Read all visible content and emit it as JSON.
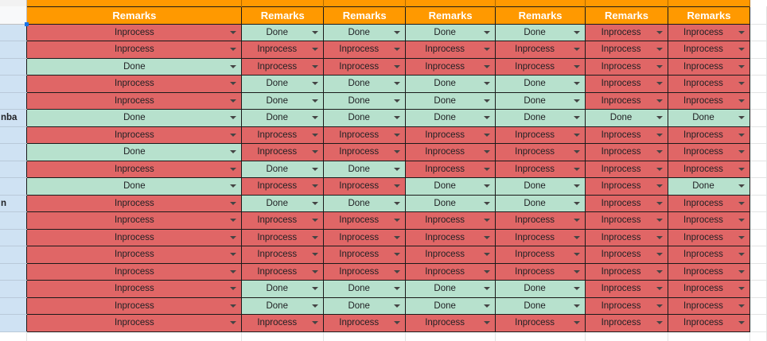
{
  "sheet": {
    "headers": [
      "Remarks",
      "Remarks",
      "Remarks",
      "Remarks",
      "Remarks",
      "Remarks",
      "Remarks"
    ],
    "rows": [
      {
        "name": "",
        "statuses": [
          "Inprocess",
          "Done",
          "Done",
          "Done",
          "Done",
          "Inprocess",
          "Inprocess"
        ]
      },
      {
        "name": "",
        "statuses": [
          "Inprocess",
          "Inprocess",
          "Inprocess",
          "Inprocess",
          "Inprocess",
          "Inprocess",
          "Inprocess"
        ]
      },
      {
        "name": "",
        "statuses": [
          "Done",
          "Inprocess",
          "Inprocess",
          "Inprocess",
          "Inprocess",
          "Inprocess",
          "Inprocess"
        ]
      },
      {
        "name": "",
        "statuses": [
          "Inprocess",
          "Done",
          "Done",
          "Done",
          "Done",
          "Inprocess",
          "Inprocess"
        ]
      },
      {
        "name": "",
        "statuses": [
          "Inprocess",
          "Done",
          "Done",
          "Done",
          "Done",
          "Inprocess",
          "Inprocess"
        ]
      },
      {
        "name": "nba",
        "statuses": [
          "Done",
          "Done",
          "Done",
          "Done",
          "Done",
          "Done",
          "Done"
        ]
      },
      {
        "name": "",
        "statuses": [
          "Inprocess",
          "Inprocess",
          "Inprocess",
          "Inprocess",
          "Inprocess",
          "Inprocess",
          "Inprocess"
        ]
      },
      {
        "name": "",
        "statuses": [
          "Done",
          "Inprocess",
          "Inprocess",
          "Inprocess",
          "Inprocess",
          "Inprocess",
          "Inprocess"
        ]
      },
      {
        "name": "",
        "statuses": [
          "Inprocess",
          "Done",
          "Done",
          "Inprocess",
          "Inprocess",
          "Inprocess",
          "Inprocess"
        ]
      },
      {
        "name": "",
        "statuses": [
          "Done",
          "Inprocess",
          "Inprocess",
          "Done",
          "Done",
          "Inprocess",
          "Done"
        ]
      },
      {
        "name": "n",
        "statuses": [
          "Inprocess",
          "Done",
          "Done",
          "Done",
          "Done",
          "Inprocess",
          "Inprocess"
        ]
      },
      {
        "name": "",
        "statuses": [
          "Inprocess",
          "Inprocess",
          "Inprocess",
          "Inprocess",
          "Inprocess",
          "Inprocess",
          "Inprocess"
        ]
      },
      {
        "name": "",
        "statuses": [
          "Inprocess",
          "Inprocess",
          "Inprocess",
          "Inprocess",
          "Inprocess",
          "Inprocess",
          "Inprocess"
        ]
      },
      {
        "name": "",
        "statuses": [
          "Inprocess",
          "Inprocess",
          "Inprocess",
          "Inprocess",
          "Inprocess",
          "Inprocess",
          "Inprocess"
        ]
      },
      {
        "name": "",
        "statuses": [
          "Inprocess",
          "Inprocess",
          "Inprocess",
          "Inprocess",
          "Inprocess",
          "Inprocess",
          "Inprocess"
        ]
      },
      {
        "name": "",
        "statuses": [
          "Inprocess",
          "Done",
          "Done",
          "Done",
          "Done",
          "Inprocess",
          "Inprocess"
        ]
      },
      {
        "name": "",
        "statuses": [
          "Inprocess",
          "Done",
          "Done",
          "Done",
          "Done",
          "Inprocess",
          "Inprocess"
        ]
      },
      {
        "name": "",
        "statuses": [
          "Inprocess",
          "Inprocess",
          "Inprocess",
          "Inprocess",
          "Inprocess",
          "Inprocess",
          "Inprocess"
        ]
      }
    ]
  },
  "colors": {
    "header": "#ff9900",
    "inprocess": "#e06666",
    "done": "#b7e1cd",
    "name_column": "#cfe2f3",
    "selection": "#1a73e8"
  },
  "icons": {
    "dropdown": "chevron-down-icon"
  }
}
